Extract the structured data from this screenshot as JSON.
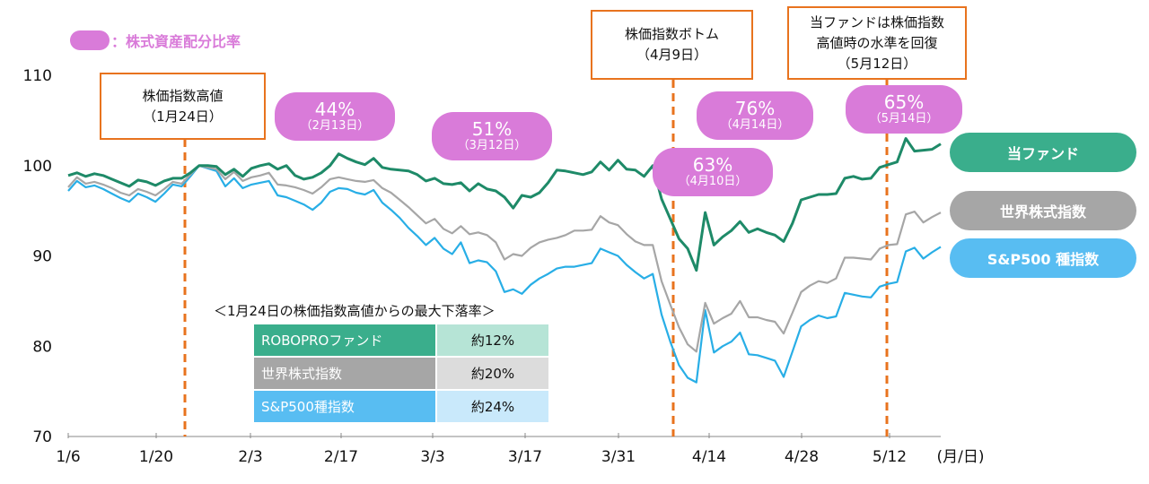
{
  "chart_data": {
    "type": "line",
    "x_ticks": [
      "1/6",
      "1/20",
      "2/3",
      "2/17",
      "3/3",
      "3/17",
      "3/31",
      "4/14",
      "4/28",
      "5/12"
    ],
    "x_unit_label": "(月/日)",
    "y_ticks": [
      70,
      80,
      90,
      100,
      110
    ],
    "ylim": [
      70,
      110
    ],
    "series": [
      {
        "name": "当ファンド",
        "color": "#1e8a68",
        "values": [
          98.9,
          99.2,
          98.8,
          99.1,
          98.9,
          98.5,
          98.1,
          97.7,
          98.4,
          98.2,
          97.8,
          98.3,
          98.6,
          98.6,
          99.2,
          100.0,
          100.0,
          99.9,
          99.0,
          99.6,
          98.8,
          99.7,
          100.0,
          100.2,
          99.6,
          100.0,
          98.9,
          98.5,
          98.7,
          99.2,
          100.0,
          101.3,
          100.8,
          100.4,
          100.1,
          100.8,
          99.8,
          99.6,
          99.5,
          99.4,
          99.0,
          98.3,
          98.6,
          98.0,
          97.9,
          98.1,
          97.2,
          98.0,
          97.4,
          97.2,
          96.5,
          95.3,
          96.7,
          96.5,
          97.0,
          98.1,
          99.5,
          99.4,
          99.2,
          99.0,
          99.3,
          100.4,
          99.5,
          100.6,
          99.6,
          99.5,
          98.8,
          100.0,
          96.3,
          94.1,
          91.9,
          90.8,
          88.4,
          94.8,
          91.2,
          92.1,
          92.8,
          93.8,
          92.6,
          93.0,
          92.6,
          92.3,
          91.6,
          93.6,
          96.2,
          96.5,
          96.8,
          96.8,
          96.9,
          98.6,
          98.8,
          98.5,
          98.6,
          99.8,
          100.1,
          100.4,
          103.0,
          101.6,
          101.7,
          101.8,
          102.4
        ]
      },
      {
        "name": "世界株式指数",
        "color": "#a6a6a6",
        "values": [
          97.6,
          98.7,
          98.0,
          98.2,
          97.9,
          97.5,
          97.0,
          96.7,
          97.4,
          97.1,
          96.7,
          97.4,
          98.2,
          98.0,
          99.0,
          100.0,
          99.8,
          99.6,
          98.5,
          99.3,
          98.3,
          98.7,
          98.9,
          99.2,
          97.9,
          97.8,
          97.6,
          97.3,
          96.9,
          97.6,
          98.5,
          98.7,
          98.5,
          98.3,
          98.2,
          98.4,
          97.5,
          97.0,
          96.2,
          95.4,
          94.5,
          93.6,
          94.1,
          93.0,
          92.5,
          93.3,
          92.4,
          92.6,
          92.3,
          91.5,
          89.6,
          90.2,
          90.0,
          90.9,
          91.5,
          91.8,
          92.0,
          92.3,
          92.8,
          92.8,
          92.9,
          94.4,
          93.7,
          93.4,
          92.4,
          91.6,
          91.2,
          91.2,
          87.2,
          84.6,
          82.1,
          80.2,
          79.4,
          84.8,
          82.5,
          83.1,
          83.6,
          85.0,
          83.2,
          83.2,
          82.9,
          82.7,
          81.4,
          83.7,
          86.0,
          86.7,
          87.2,
          87.0,
          87.5,
          89.8,
          89.8,
          89.7,
          89.6,
          90.8,
          91.2,
          91.3,
          94.6,
          94.9,
          93.7,
          94.3,
          94.8
        ]
      },
      {
        "name": "S&P500 種指数",
        "color": "#28aee6",
        "values": [
          97.2,
          98.3,
          97.6,
          97.8,
          97.4,
          96.9,
          96.4,
          96.0,
          96.9,
          96.5,
          96.0,
          96.9,
          97.9,
          97.7,
          98.8,
          100.0,
          99.7,
          99.4,
          97.7,
          98.6,
          97.5,
          97.9,
          98.1,
          98.3,
          96.7,
          96.5,
          96.1,
          95.7,
          95.1,
          95.9,
          97.1,
          97.5,
          97.4,
          97.0,
          96.8,
          97.3,
          95.9,
          95.1,
          94.2,
          93.1,
          92.2,
          91.2,
          92.0,
          90.8,
          90.2,
          91.5,
          89.2,
          89.5,
          89.3,
          88.3,
          86.0,
          86.3,
          85.8,
          86.8,
          87.5,
          88.0,
          88.6,
          88.8,
          88.8,
          89.0,
          89.2,
          90.8,
          90.4,
          90.0,
          89.0,
          88.2,
          87.5,
          88.0,
          83.5,
          80.5,
          77.9,
          76.5,
          76.0,
          84.0,
          79.3,
          80.0,
          80.5,
          81.5,
          79.1,
          79.0,
          78.7,
          78.4,
          76.6,
          79.4,
          82.2,
          82.9,
          83.4,
          83.1,
          83.3,
          85.9,
          85.7,
          85.5,
          85.4,
          86.6,
          86.9,
          87.1,
          90.5,
          90.9,
          89.7,
          90.4,
          91.0
        ]
      }
    ],
    "event_lines": [
      {
        "label_lines": [
          "株価指数高値",
          "（1月24日）"
        ]
      },
      {
        "label_lines": [
          "株価指数ボトム",
          "（4月9日）"
        ]
      },
      {
        "label_lines": [
          "当ファンドは株価指数",
          "高値時の水準を回復",
          "（5月12日）"
        ]
      }
    ],
    "allocation_legend": "：株式資産配分比率",
    "allocation_bubbles": [
      {
        "pct": "44%",
        "date": "（2月13日）"
      },
      {
        "pct": "51%",
        "date": "（3月12日）"
      },
      {
        "pct": "63%",
        "date": "（4月10日）"
      },
      {
        "pct": "76%",
        "date": "（4月14日）"
      },
      {
        "pct": "65%",
        "date": "（5月14日）"
      }
    ],
    "legend": [
      {
        "name": "当ファンド",
        "color": "#3aae8c"
      },
      {
        "name": "世界株式指数",
        "color": "#a6a6a6"
      },
      {
        "name": "S&P500 種指数",
        "color": "#58bdf2"
      }
    ],
    "drawdown_table": {
      "title": "＜1月24日の株価指数高値からの最大下落率＞",
      "rows": [
        {
          "name": "ROBOPROファンド",
          "value": "約12%",
          "name_color": "#3aae8c",
          "value_color": "#b6e4d6"
        },
        {
          "name": "世界株式指数",
          "value": "約20%",
          "name_color": "#a6a6a6",
          "value_color": "#dcdcdc"
        },
        {
          "name": "S&P500種指数",
          "value": "約24%",
          "name_color": "#58bdf2",
          "value_color": "#c9e9fb"
        }
      ]
    }
  }
}
